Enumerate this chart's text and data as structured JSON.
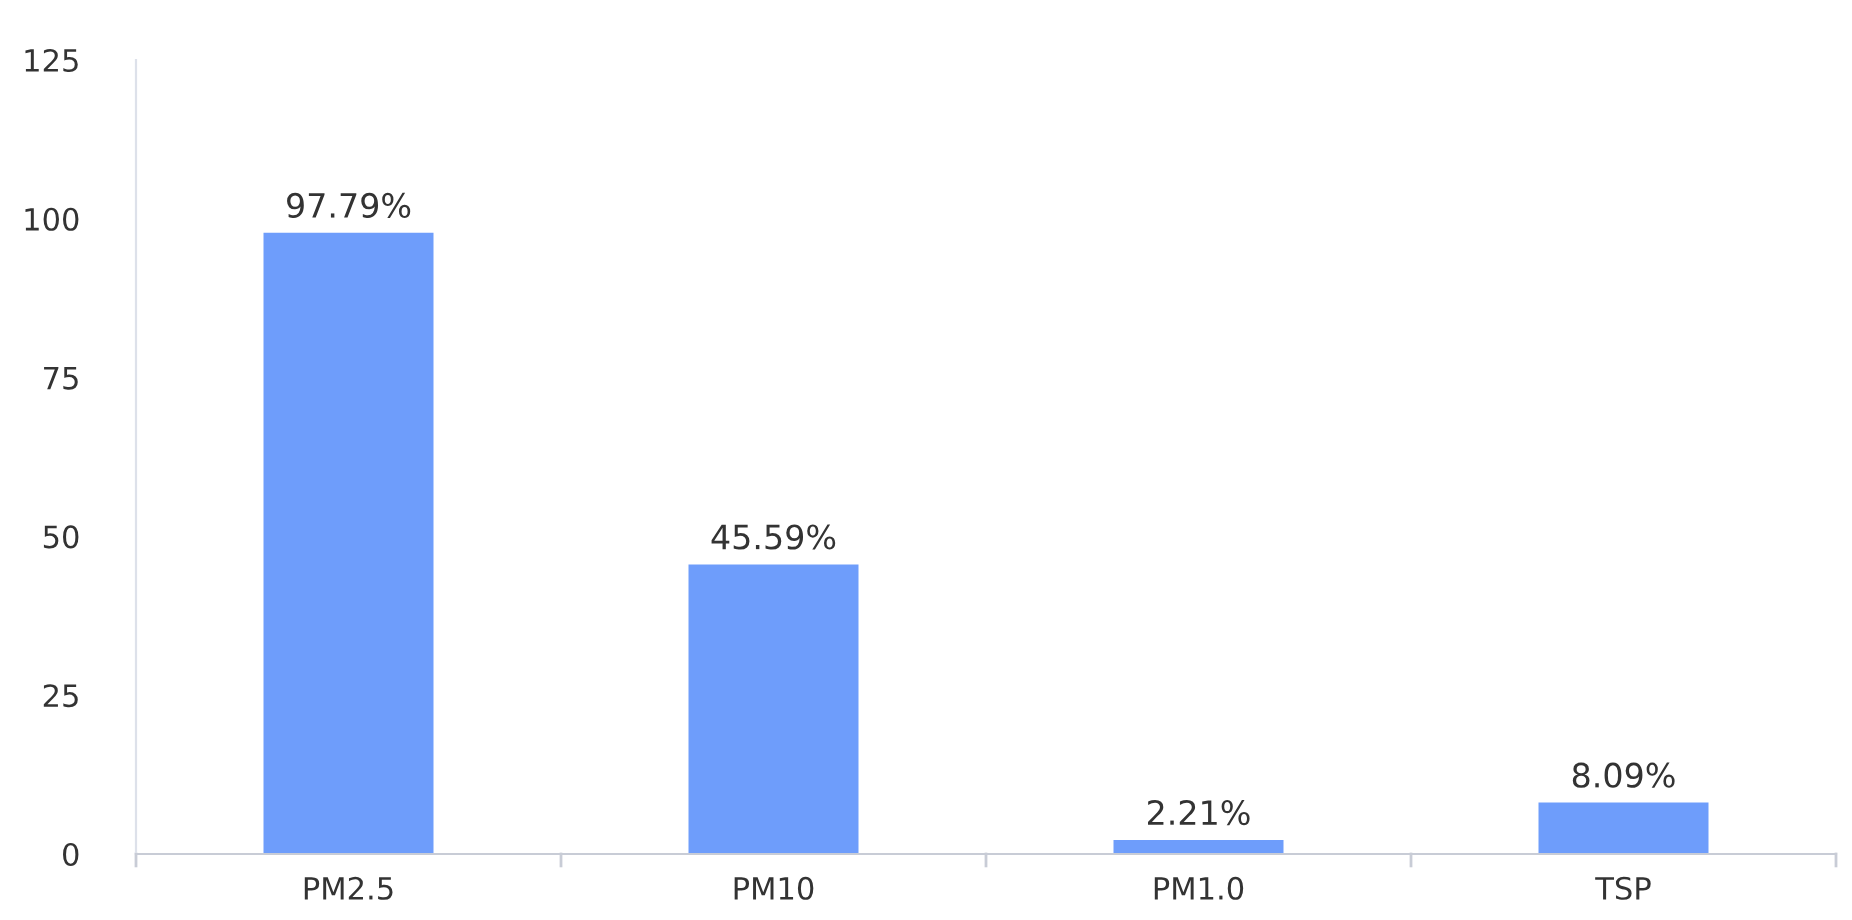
{
  "chart_data": {
    "type": "bar",
    "categories": [
      "PM2.5",
      "PM10",
      "PM1.0",
      "TSP"
    ],
    "values": [
      97.79,
      45.59,
      2.21,
      8.09
    ],
    "value_labels": [
      "97.79%",
      "45.59%",
      "2.21%",
      "8.09%"
    ],
    "color": "#6e9dfb",
    "ylim": [
      0,
      125
    ],
    "yticks": [
      0,
      25,
      50,
      75,
      100,
      125
    ],
    "grid": false,
    "legend": false
  }
}
